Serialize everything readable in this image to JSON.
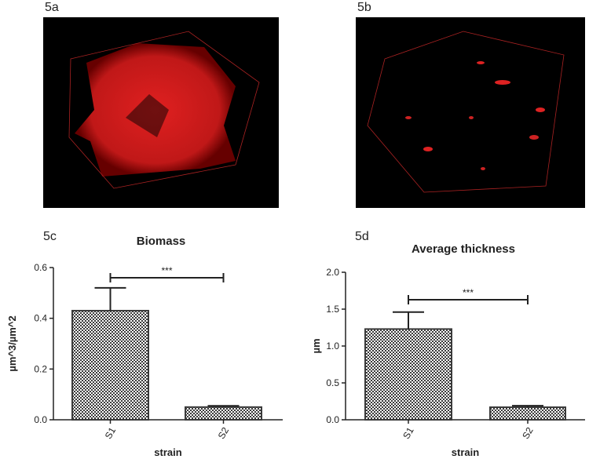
{
  "panel_labels": [
    "5a",
    "5b",
    "5c",
    "5d"
  ],
  "chart_data": [
    {
      "type": "bar",
      "title": "Biomass",
      "y_label": "µm^3/µm^2",
      "x_label": "strain",
      "categories": [
        "S1",
        "S2"
      ],
      "values": [
        0.43,
        0.05
      ],
      "errors": [
        0.09,
        0.005
      ],
      "color": "#3a3a3a",
      "annotation": "***",
      "ylim": [
        0,
        0.6
      ],
      "yticks": [
        {
          "value": 0,
          "label": "0.0"
        },
        0.2,
        0.4,
        0.6
      ]
    },
    {
      "type": "bar",
      "title": "Average thickness",
      "y_label": "µm",
      "x_label": "strain",
      "categories": [
        "S1",
        "S2"
      ],
      "values": [
        1.23,
        0.17
      ],
      "errors": [
        0.23,
        0.02
      ],
      "color": "#3a3a3a",
      "annotation": "***",
      "ylim": [
        0,
        2
      ],
      "yticks": [
        {
          "value": 0,
          "label": "0.0"
        },
        0.5,
        {
          "value": 1,
          "label": "1.0"
        },
        1.5,
        {
          "value": 2,
          "label": "2.0"
        }
      ]
    }
  ]
}
